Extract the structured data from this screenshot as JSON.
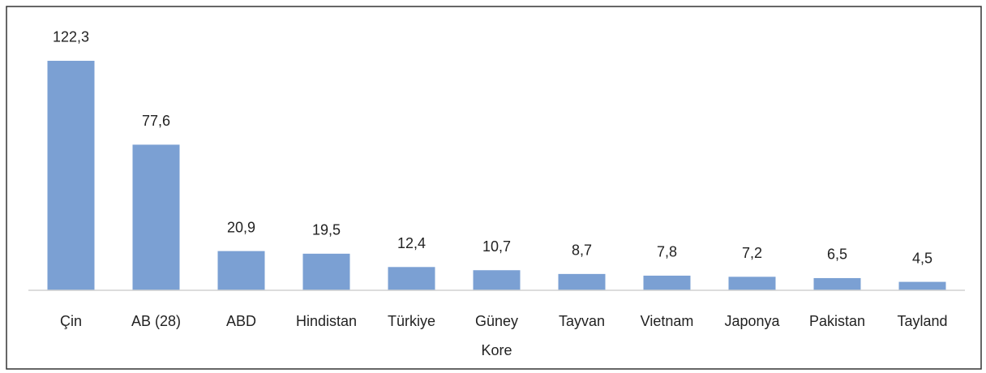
{
  "chart_data": {
    "type": "bar",
    "categories": [
      "Çin",
      "AB (28)",
      "ABD",
      "Hindistan",
      "Türkiye",
      "Güney Kore",
      "Tayvan",
      "Vietnam",
      "Japonya",
      "Pakistan",
      "Tayland"
    ],
    "values": [
      122.3,
      77.6,
      20.9,
      19.5,
      12.4,
      10.7,
      8.7,
      7.8,
      7.2,
      6.5,
      4.5
    ],
    "value_labels": [
      "122,3",
      "77,6",
      "20,9",
      "19,5",
      "12,4",
      "10,7",
      "8,7",
      "7,8",
      "7,2",
      "6,5",
      "4,5"
    ],
    "color": "#7ba0d3",
    "ylim": [
      0,
      140
    ]
  }
}
